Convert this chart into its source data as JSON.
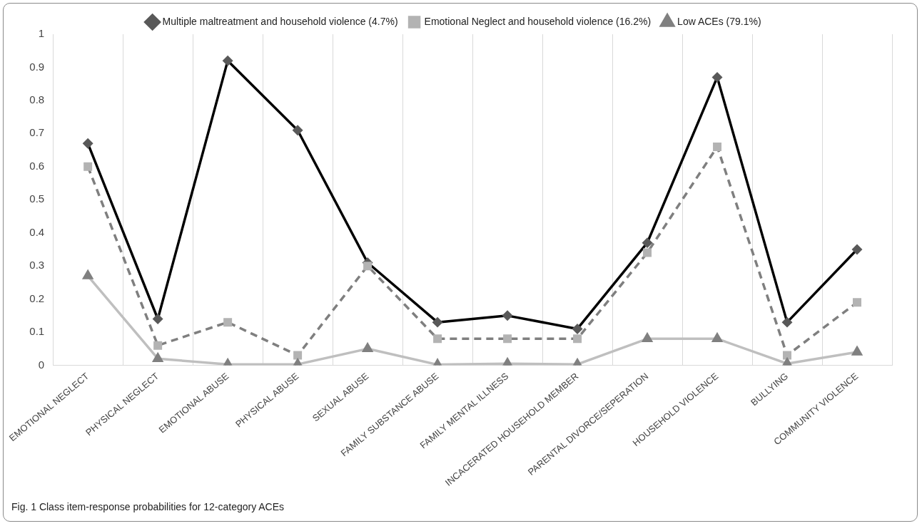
{
  "chart_data": {
    "type": "line",
    "categories": [
      "EMOTIONAL NEGLECT",
      "PHYSICAL NEGLECT",
      "EMOTIONAL ABUSE",
      "PHYSICAL ABUSE",
      "SEXUAL ABUSE",
      "FAMILY SUBSTANCE ABUSE",
      "FAMILY MENTAL ILLNESS",
      "INCACERATED HOUSEHOLD MEMBER",
      "PARENTAL DIVORCE/SEPERATION",
      "HOUSEHOLD VIOLENCE",
      "BULLYING",
      "COMMUNITY VIOLENCE"
    ],
    "series": [
      {
        "name": "Multiple maltreatment and household violence (4.7%)",
        "color": "#000000",
        "marker": "diamond",
        "line_style": "solid",
        "values": [
          0.67,
          0.14,
          0.92,
          0.71,
          0.31,
          0.13,
          0.15,
          0.11,
          0.37,
          0.87,
          0.13,
          0.35
        ]
      },
      {
        "name": "Emotional Neglect and household violence (16.2%)",
        "color": "#7f7f7f",
        "marker": "square",
        "line_style": "dashed",
        "values": [
          0.6,
          0.06,
          0.13,
          0.03,
          0.3,
          0.08,
          0.08,
          0.08,
          0.34,
          0.66,
          0.03,
          0.19
        ]
      },
      {
        "name": "Low ACEs (79.1%)",
        "color": "#bfbfbf",
        "marker": "triangle",
        "line_style": "solid",
        "values": [
          0.27,
          0.02,
          0.003,
          0.003,
          0.05,
          0.002,
          0.005,
          0.003,
          0.08,
          0.08,
          0.005,
          0.04
        ]
      }
    ],
    "ylim": [
      0,
      1
    ],
    "yticks": [
      0,
      0.1,
      0.2,
      0.3,
      0.4,
      0.5,
      0.6,
      0.7,
      0.8,
      0.9,
      1
    ],
    "grid": "x",
    "legend": "top",
    "annotations": [
      "Fig. 1  Class item-response probabilities for 12-category ACEs"
    ]
  }
}
